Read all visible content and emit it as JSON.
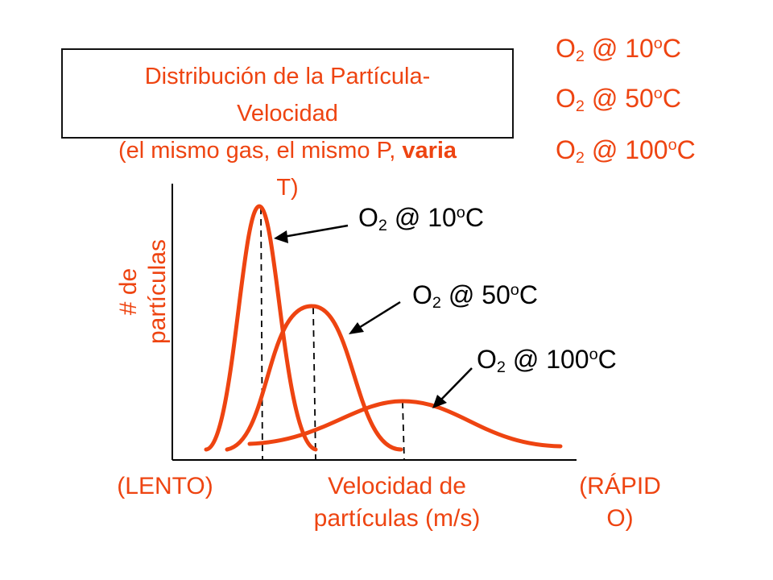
{
  "title": {
    "line1": "Distribución de la Partícula-",
    "line2": "Velocidad",
    "line3a": "(el mismo gas, el mismo P, ",
    "line3b": "varia",
    "line4": "T)"
  },
  "legend": [
    {
      "species": "O",
      "sub": "2",
      "at": " @ 10",
      "sup": "o",
      "unit": "C"
    },
    {
      "species": "O",
      "sub": "2",
      "at": " @ 50",
      "sup": "o",
      "unit": "C"
    },
    {
      "species": "O",
      "sub": "2",
      "at": " @ 100",
      "sup": "o",
      "unit": "C"
    }
  ],
  "curve_labels": [
    {
      "species": "O",
      "sub": "2",
      "at": " @ 10",
      "sup": "o",
      "unit": "C"
    },
    {
      "species": "O",
      "sub": "2",
      "at": " @ 50",
      "sup": "o",
      "unit": "C"
    },
    {
      "species": "O",
      "sub": "2",
      "at": " @ 100",
      "sup": "o",
      "unit": "C"
    }
  ],
  "axes": {
    "ylabel_line1": "# de",
    "ylabel_line2": "partículas",
    "xlabel_left": "(LENTO)",
    "xlabel_mid_line1": "Velocidad de",
    "xlabel_mid_line2": "partículas (m/s)",
    "xlabel_right_line1": "(RÁPID",
    "xlabel_right_line2": "O)"
  },
  "colors": {
    "curve": "#ee4411",
    "text_accent": "#ee4411",
    "axis": "#000000"
  }
}
